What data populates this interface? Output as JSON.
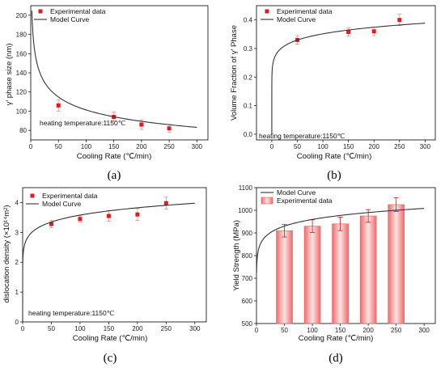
{
  "chart_data": [
    {
      "panel": "(a)",
      "type": "scatter",
      "xlabel": "Cooling Rate (℃/min)",
      "ylabel": "γ' phase size (nm)",
      "xlim": [
        0,
        320
      ],
      "ylim": [
        70,
        210
      ],
      "xticks": [
        0,
        50,
        100,
        150,
        200,
        250,
        300
      ],
      "yticks": [
        80,
        100,
        120,
        140,
        160,
        180,
        200
      ],
      "legend_position": "top-left",
      "annotation": "heating temperature:1150℃",
      "series": [
        {
          "name": "Experimental data",
          "kind": "points",
          "color": "#e31a1c",
          "x": [
            50,
            150,
            200,
            250
          ],
          "y": [
            106,
            94,
            86,
            82
          ],
          "err": [
            6,
            5,
            5,
            4
          ]
        },
        {
          "name": "Model Curve",
          "kind": "curve",
          "color": "#333333",
          "model": {
            "a": 232.0,
            "b": 0.18,
            "x0": 2,
            "x1": 300
          }
        }
      ]
    },
    {
      "panel": "(b)",
      "type": "scatter",
      "xlabel": "Cooling Rate (℃/min)",
      "ylabel": "Volume Fraction of γ' Phase",
      "xlim": [
        -30,
        320
      ],
      "ylim": [
        -0.02,
        0.45
      ],
      "xticks": [
        0,
        50,
        100,
        150,
        200,
        250,
        300
      ],
      "yticks": [
        0.0,
        0.1,
        0.2,
        0.3,
        0.4
      ],
      "legend_position": "top-left",
      "annotation": "heating temperature:1150℃",
      "series": [
        {
          "name": "Experimental data",
          "kind": "points",
          "color": "#e31a1c",
          "x": [
            50,
            150,
            200,
            250
          ],
          "y": [
            0.33,
            0.358,
            0.36,
            0.4
          ],
          "err": [
            0.015,
            0.015,
            0.015,
            0.02
          ]
        },
        {
          "name": "Model Curve",
          "kind": "curve",
          "color": "#333333",
          "model": {
            "a": 0.23,
            "b": 0.092,
            "x0": 0.001,
            "x1": 300
          }
        }
      ]
    },
    {
      "panel": "(c)",
      "type": "scatter",
      "xlabel": "Cooling Rate (℃/min)",
      "ylabel": "dislocation density (×10¹⁴m²)",
      "xlim": [
        0,
        320
      ],
      "ylim": [
        0,
        4.5
      ],
      "xticks": [
        0,
        50,
        100,
        150,
        200,
        250,
        300
      ],
      "yticks": [
        0,
        1,
        2,
        3,
        4
      ],
      "legend_position": "top-left",
      "annotation": "heating temperature:1150℃",
      "series": [
        {
          "name": "Experimental data",
          "kind": "points",
          "color": "#e31a1c",
          "x": [
            50,
            100,
            150,
            200,
            250
          ],
          "y": [
            3.28,
            3.45,
            3.55,
            3.6,
            3.98
          ],
          "err": [
            0.12,
            0.1,
            0.18,
            0.2,
            0.2
          ]
        },
        {
          "name": "Model Curve",
          "kind": "curve",
          "color": "#333333",
          "model": {
            "a": 2.3,
            "b": 0.096,
            "x0": 0.05,
            "x1": 300
          }
        }
      ]
    },
    {
      "panel": "(d)",
      "type": "bar",
      "xlabel": "Cooling Rate (℃/min)",
      "ylabel": "Yield Strength (MPa)",
      "xlim": [
        0,
        320
      ],
      "ylim": [
        500,
        1100
      ],
      "xticks": [
        0,
        50,
        100,
        150,
        200,
        250,
        300
      ],
      "yticks": [
        500,
        600,
        700,
        800,
        900,
        1000,
        1100
      ],
      "legend_position": "top-left",
      "series": [
        {
          "name": "Experimental data",
          "kind": "bars",
          "color": "#e31a1c",
          "x": [
            50,
            100,
            150,
            200,
            250
          ],
          "y": [
            910,
            930,
            940,
            975,
            1025
          ],
          "err": [
            28,
            28,
            30,
            28,
            30
          ]
        },
        {
          "name": "Model Curve",
          "kind": "curve",
          "color": "#333333",
          "model": {
            "a": 780.0,
            "b": 0.045,
            "x0": 0.2,
            "x1": 300
          }
        }
      ]
    }
  ]
}
